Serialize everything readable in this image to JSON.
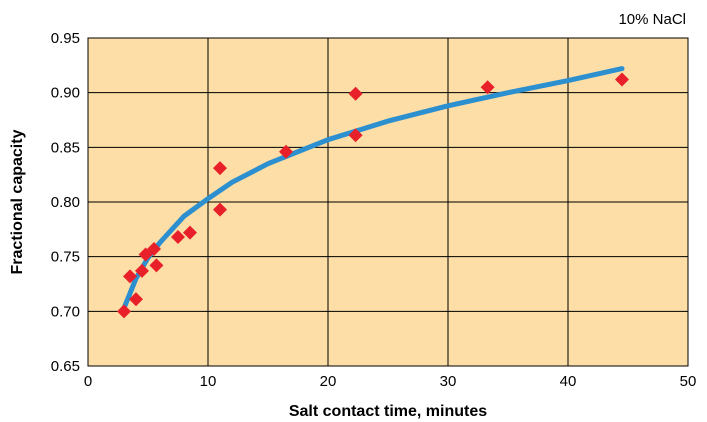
{
  "chart_data": {
    "type": "scatter",
    "title": "",
    "annotation": "10% NaCl",
    "xlabel": "Salt contact time, minutes",
    "ylabel": "Fractional capacity",
    "xlim": [
      0,
      50
    ],
    "ylim": [
      0.65,
      0.95
    ],
    "x_ticks": [
      "0",
      "10",
      "20",
      "30",
      "40",
      "50"
    ],
    "y_ticks": [
      "0.65",
      "0.70",
      "0.75",
      "0.80",
      "0.85",
      "0.90",
      "0.95"
    ],
    "grid": true,
    "colors": {
      "plot_background": "#fddea6",
      "grid": "#000000",
      "markers": "#e8202a",
      "fit_line": "#2b8fd0"
    },
    "series": [
      {
        "marker": "diamond",
        "points": [
          {
            "x": 3.0,
            "y": 0.7
          },
          {
            "x": 3.5,
            "y": 0.732
          },
          {
            "x": 4.0,
            "y": 0.711
          },
          {
            "x": 4.5,
            "y": 0.737
          },
          {
            "x": 4.8,
            "y": 0.752
          },
          {
            "x": 5.5,
            "y": 0.757
          },
          {
            "x": 5.7,
            "y": 0.742
          },
          {
            "x": 7.5,
            "y": 0.768
          },
          {
            "x": 8.5,
            "y": 0.772
          },
          {
            "x": 11.0,
            "y": 0.831
          },
          {
            "x": 11.0,
            "y": 0.793
          },
          {
            "x": 16.5,
            "y": 0.846
          },
          {
            "x": 22.3,
            "y": 0.899
          },
          {
            "x": 22.3,
            "y": 0.861
          },
          {
            "x": 33.3,
            "y": 0.905
          },
          {
            "x": 44.5,
            "y": 0.912
          }
        ]
      },
      {
        "type": "line",
        "curve": "logarithmic fit",
        "points": [
          {
            "x": 3.0,
            "y": 0.703
          },
          {
            "x": 4.0,
            "y": 0.73
          },
          {
            "x": 5.0,
            "y": 0.749
          },
          {
            "x": 6.0,
            "y": 0.763
          },
          {
            "x": 8.0,
            "y": 0.787
          },
          {
            "x": 10.0,
            "y": 0.803
          },
          {
            "x": 12.0,
            "y": 0.818
          },
          {
            "x": 15.0,
            "y": 0.835
          },
          {
            "x": 20.0,
            "y": 0.857
          },
          {
            "x": 25.0,
            "y": 0.874
          },
          {
            "x": 30.0,
            "y": 0.888
          },
          {
            "x": 35.0,
            "y": 0.9
          },
          {
            "x": 40.0,
            "y": 0.911
          },
          {
            "x": 44.5,
            "y": 0.922
          }
        ]
      }
    ]
  }
}
